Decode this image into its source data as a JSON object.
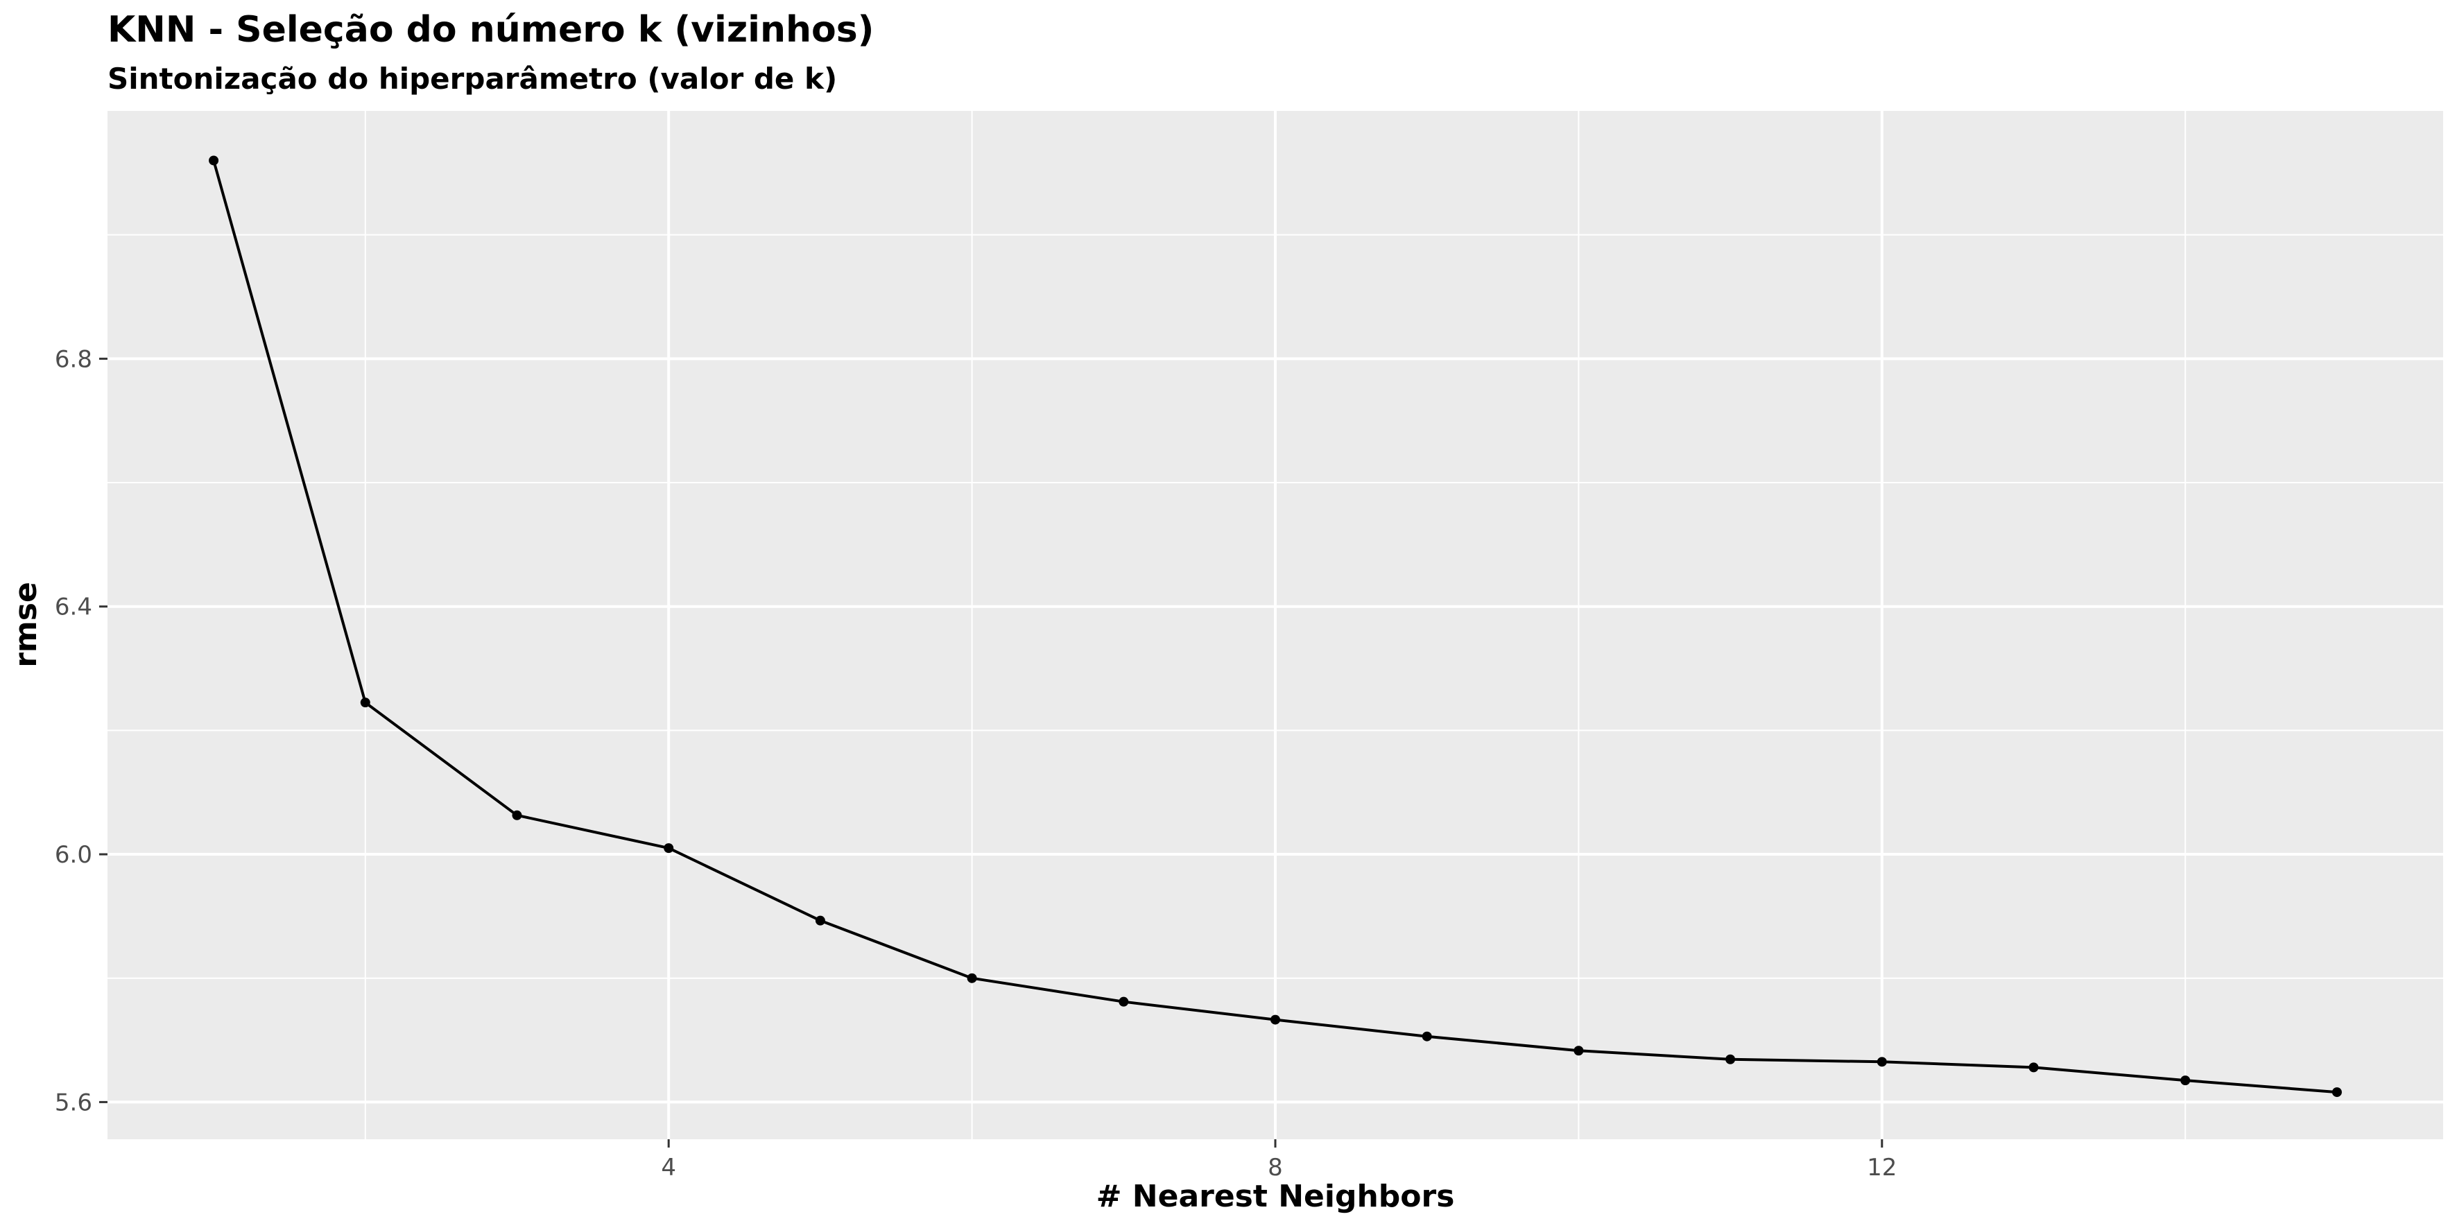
{
  "chart_data": {
    "type": "line",
    "title": "KNN - Seleção do número k (vizinhos)",
    "subtitle": "Sintonização do hiperparâmetro (valor de k)",
    "xlabel": "# Nearest Neighbors",
    "ylabel": "rmse",
    "x": [
      1,
      2,
      3,
      4,
      5,
      6,
      7,
      8,
      9,
      10,
      11,
      12,
      13,
      14,
      15
    ],
    "series": [
      {
        "values": [
          7.12,
          6.245,
          6.063,
          6.01,
          5.893,
          5.8,
          5.762,
          5.733,
          5.706,
          5.683,
          5.669,
          5.665,
          5.656,
          5.635,
          5.616
        ]
      }
    ],
    "xlim": [
      0.3,
      15.7
    ],
    "ylim": [
      5.54,
      7.2
    ],
    "xticks": [
      4,
      8,
      12
    ],
    "yticks": [
      5.6,
      6.0,
      6.4,
      6.8
    ],
    "xtick_labels": [
      "4",
      "8",
      "12"
    ],
    "ytick_labels": [
      "5.6",
      "6.0",
      "6.4",
      "6.8"
    ],
    "grid": true,
    "colors": {
      "panel_background": "#ebebeb",
      "grid_major": "#ffffff",
      "line": "#000000",
      "point": "#000000"
    }
  }
}
